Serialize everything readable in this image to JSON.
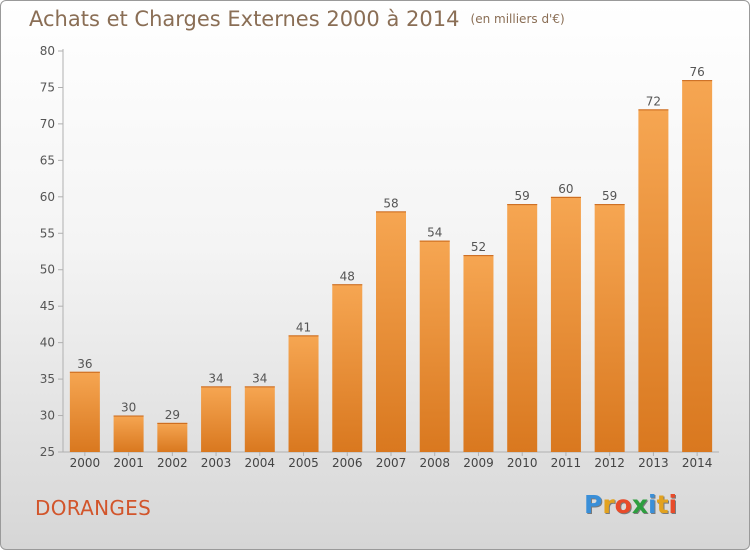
{
  "title": "Achats et Charges Externes 2000 à 2014",
  "subtitle": "(en milliers d'€)",
  "place": "DORANGES",
  "brand": {
    "letters": [
      "P",
      "r",
      "o",
      "x",
      "i",
      "t",
      "i"
    ],
    "colors": [
      "#3a8fd8",
      "#e2a21f",
      "#e84b2a",
      "#2d9e3f",
      "#3a8fd8",
      "#e2a21f",
      "#e84b2a"
    ]
  },
  "colors": {
    "bar_top": "#f6a652",
    "bar_bottom": "#d9781f",
    "label": "#555555",
    "title": "#8a6e55",
    "place": "#d2552b"
  },
  "chart_data": {
    "type": "bar",
    "categories": [
      "2000",
      "2001",
      "2002",
      "2003",
      "2004",
      "2005",
      "2006",
      "2007",
      "2008",
      "2009",
      "2010",
      "2011",
      "2012",
      "2013",
      "2014"
    ],
    "values": [
      36,
      30,
      29,
      34,
      34,
      41,
      48,
      58,
      54,
      52,
      59,
      60,
      59,
      72,
      76
    ],
    "ylim": [
      25,
      80
    ],
    "yticks": [
      25,
      30,
      35,
      40,
      45,
      50,
      55,
      60,
      65,
      70,
      75,
      80
    ],
    "grid": false,
    "xlabel": "",
    "ylabel": ""
  }
}
